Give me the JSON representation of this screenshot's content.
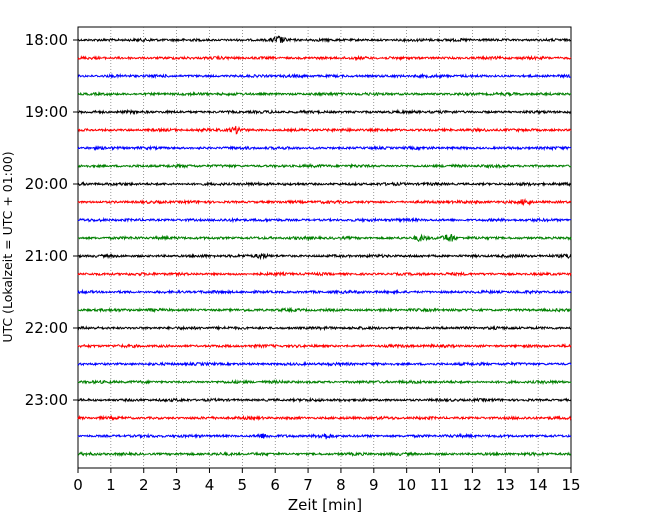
{
  "chart_data": {
    "type": "line",
    "xlabel": "Zeit  [min]",
    "ylabel": "UTC (Lokalzeit = UTC + 01:00)",
    "xlim": [
      0,
      15
    ],
    "x_ticks": [
      "0",
      "1",
      "2",
      "3",
      "4",
      "5",
      "6",
      "7",
      "8",
      "9",
      "10",
      "11",
      "12",
      "13",
      "14",
      "15"
    ],
    "y_ticks": [
      "18:00",
      "19:00",
      "20:00",
      "21:00",
      "22:00",
      "23:00"
    ],
    "grid_x": true,
    "trace_count": 24,
    "trace_interval_minutes": 15,
    "first_trace": "18:00",
    "colors": [
      "#000000",
      "#ff0000",
      "#0000ff",
      "#008000"
    ],
    "events": [
      {
        "trace": "18:00",
        "minute": 6.1,
        "amplitude": 3.0
      },
      {
        "trace": "19:15",
        "minute": 4.8,
        "amplitude": 3.0
      },
      {
        "trace": "20:15",
        "minute": 13.6,
        "amplitude": 2.5
      },
      {
        "trace": "20:45",
        "minute": 10.4,
        "amplitude": 2.5
      },
      {
        "trace": "20:45",
        "minute": 11.3,
        "amplitude": 3.5
      },
      {
        "trace": "21:00",
        "minute": 5.6,
        "amplitude": 2.0
      },
      {
        "trace": "21:00",
        "minute": 15.0,
        "amplitude": 2.5
      },
      {
        "trace": "23:30",
        "minute": 5.6,
        "amplitude": 2.0
      },
      {
        "trace": "23:30",
        "minute": 7.5,
        "amplitude": 2.0
      }
    ]
  }
}
